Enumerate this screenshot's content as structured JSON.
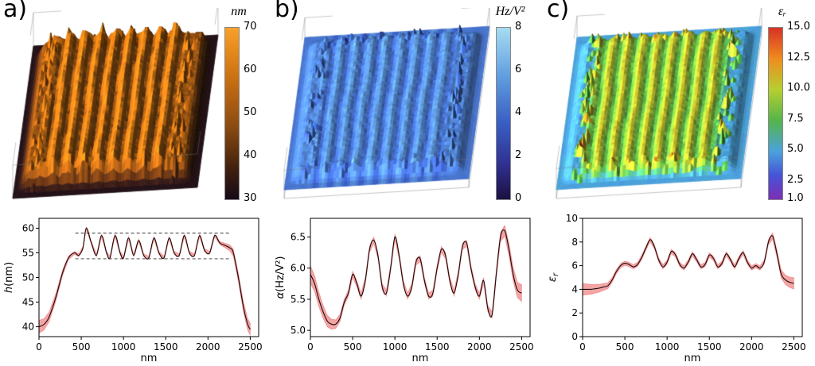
{
  "panels": [
    {
      "label": "a)",
      "colorbar": {
        "title": "nm",
        "min": 30,
        "max": 70,
        "tick_values": [
          70,
          60,
          50,
          40,
          30
        ],
        "tick_labels": [
          "70",
          "60",
          "50",
          "40",
          "30"
        ],
        "stops": [
          [
            0,
            "#150a18"
          ],
          [
            0.18,
            "#41200e"
          ],
          [
            0.42,
            "#8a4a10"
          ],
          [
            0.68,
            "#c46d12"
          ],
          [
            0.88,
            "#e88c1c"
          ],
          [
            1,
            "#f9a12b"
          ]
        ]
      },
      "surface": {
        "type": "3d-topography",
        "stripe_count": 9
      }
    },
    {
      "label": "b)",
      "colorbar": {
        "title": "Hz/V²",
        "min": 0,
        "max": 8,
        "tick_values": [
          8,
          6,
          4,
          2,
          0
        ],
        "tick_labels": [
          "8",
          "6",
          "4",
          "2",
          "0"
        ],
        "stops": [
          [
            0,
            "#1b1040"
          ],
          [
            0.2,
            "#30308f"
          ],
          [
            0.45,
            "#3a5fc4"
          ],
          [
            0.7,
            "#5e9ade"
          ],
          [
            1,
            "#a6dcf2"
          ]
        ]
      },
      "surface": {
        "type": "3d-dissipation-map",
        "stripe_count": 9
      }
    },
    {
      "label": "c)",
      "colorbar": {
        "title": "εᵣ",
        "min": 1.0,
        "max": 15.0,
        "tick_values": [
          15.0,
          12.5,
          10.0,
          7.5,
          5.0,
          2.5,
          1.0
        ],
        "tick_labels": [
          "15.0",
          "12.5",
          "10.0",
          "7.5",
          "5.0",
          "2.5",
          "1.0"
        ],
        "stops": [
          [
            0,
            "#7b2fb5"
          ],
          [
            0.14,
            "#4753d6"
          ],
          [
            0.28,
            "#4aa3dc"
          ],
          [
            0.46,
            "#55b44a"
          ],
          [
            0.64,
            "#b6cf30"
          ],
          [
            0.82,
            "#ee8c1e"
          ],
          [
            1,
            "#d83125"
          ]
        ]
      },
      "surface": {
        "type": "3d-permittivity-map",
        "stripe_count": 9
      }
    }
  ],
  "chart_data": [
    {
      "type": "line",
      "panel": "a",
      "xlabel": "nm",
      "ylabel_parts": [
        {
          "t": "h",
          "italic": true
        },
        {
          "t": "(nm)"
        }
      ],
      "xlim": [
        0,
        2600
      ],
      "ylim": [
        38,
        62
      ],
      "xtick_values": [
        0,
        500,
        1000,
        1500,
        2000,
        2500
      ],
      "xtick_labels": [
        "0",
        "500",
        "1000",
        "1500",
        "2000",
        "2500"
      ],
      "ytick_values": [
        40,
        45,
        50,
        55,
        60
      ],
      "ytick_labels": [
        "40",
        "45",
        "50",
        "55",
        "60"
      ],
      "line_color": "#1c0a0a",
      "band_color": "#e84b4b",
      "band_mid": 0.3,
      "band_edge": 1.3,
      "guides": [
        {
          "y": 59.0,
          "x1": 430,
          "x2": 2260
        },
        {
          "y": 53.8,
          "x1": 430,
          "x2": 2260
        }
      ],
      "x": [
        0,
        60,
        120,
        200,
        280,
        350,
        420,
        470,
        520,
        560,
        620,
        680,
        740,
        800,
        840,
        900,
        960,
        1000,
        1060,
        1120,
        1180,
        1240,
        1300,
        1360,
        1420,
        1480,
        1540,
        1600,
        1660,
        1720,
        1780,
        1840,
        1900,
        1960,
        2020,
        2080,
        2140,
        2200,
        2260,
        2300,
        2360,
        2420,
        2470,
        2500
      ],
      "y": [
        40,
        40.5,
        42,
        46,
        51,
        54,
        55,
        54.5,
        56,
        60,
        57,
        54.5,
        58.5,
        55,
        54,
        58.5,
        55,
        54,
        58,
        54.5,
        57.5,
        54.5,
        54,
        58,
        55,
        54,
        58,
        55,
        54.5,
        58.5,
        55,
        54.5,
        58.5,
        55.5,
        55,
        58.5,
        57,
        56.5,
        56,
        55,
        50,
        44,
        40.5,
        39.5
      ]
    },
    {
      "type": "line",
      "panel": "b",
      "xlabel": "nm",
      "ylabel_parts": [
        {
          "t": "α",
          "italic": true
        },
        {
          "t": "(Hz/V²)"
        }
      ],
      "xlim": [
        0,
        2600
      ],
      "ylim": [
        4.9,
        6.8
      ],
      "xtick_values": [
        0,
        500,
        1000,
        1500,
        2000,
        2500
      ],
      "xtick_labels": [
        "0",
        "500",
        "1000",
        "1500",
        "2000",
        "2500"
      ],
      "ytick_values": [
        5.0,
        5.5,
        6.0,
        6.5
      ],
      "ytick_labels": [
        "5.0",
        "5.5",
        "6.0",
        "6.5"
      ],
      "line_color": "#1c0a0a",
      "band_color": "#e84b4b",
      "band_mid": 0.05,
      "band_edge": 0.14,
      "guides": [],
      "x": [
        0,
        50,
        100,
        150,
        200,
        250,
        300,
        350,
        400,
        450,
        500,
        550,
        600,
        650,
        700,
        750,
        800,
        850,
        900,
        950,
        1000,
        1050,
        1100,
        1150,
        1200,
        1250,
        1300,
        1350,
        1400,
        1450,
        1500,
        1550,
        1600,
        1650,
        1700,
        1750,
        1800,
        1850,
        1900,
        1950,
        2000,
        2050,
        2100,
        2150,
        2200,
        2250,
        2300,
        2350,
        2400,
        2450,
        2500
      ],
      "y": [
        5.9,
        5.75,
        5.5,
        5.3,
        5.15,
        5.1,
        5.1,
        5.2,
        5.45,
        5.6,
        5.9,
        5.75,
        5.55,
        5.8,
        6.3,
        6.45,
        6.2,
        5.7,
        5.6,
        6.0,
        6.5,
        6.2,
        5.75,
        5.55,
        5.7,
        6.1,
        6.15,
        5.8,
        5.55,
        5.6,
        6.0,
        6.3,
        6.2,
        5.8,
        5.6,
        5.9,
        6.35,
        6.4,
        6.0,
        5.7,
        5.55,
        5.8,
        5.35,
        5.25,
        5.9,
        6.5,
        6.6,
        6.3,
        5.9,
        5.65,
        5.6
      ]
    },
    {
      "type": "line",
      "panel": "c",
      "xlabel": "nm",
      "ylabel_parts": [
        {
          "t": "ε",
          "italic": true
        },
        {
          "t": "r",
          "italic": true,
          "sub": true
        }
      ],
      "xlim": [
        0,
        2600
      ],
      "ylim": [
        0,
        10
      ],
      "xtick_values": [
        0,
        500,
        1000,
        1500,
        2000,
        2500
      ],
      "xtick_labels": [
        "0",
        "500",
        "1000",
        "1500",
        "2000",
        "2500"
      ],
      "ytick_values": [
        0,
        2,
        4,
        6,
        8,
        10
      ],
      "ytick_labels": [
        "0",
        "2",
        "4",
        "6",
        "8",
        "10"
      ],
      "line_color": "#1c0a0a",
      "band_color": "#e84b4b",
      "band_mid": 0.18,
      "band_edge": 0.5,
      "guides": [],
      "x": [
        0,
        50,
        100,
        150,
        200,
        250,
        300,
        350,
        400,
        450,
        500,
        550,
        600,
        650,
        700,
        750,
        800,
        850,
        900,
        950,
        1000,
        1050,
        1100,
        1150,
        1200,
        1250,
        1300,
        1350,
        1400,
        1450,
        1500,
        1550,
        1600,
        1650,
        1700,
        1750,
        1800,
        1850,
        1900,
        1950,
        2000,
        2050,
        2100,
        2150,
        2200,
        2250,
        2300,
        2350,
        2400,
        2450,
        2500
      ],
      "y": [
        4.0,
        4.0,
        4.0,
        4.05,
        4.1,
        4.2,
        4.3,
        4.8,
        5.5,
        6.0,
        6.2,
        6.1,
        5.9,
        6.1,
        6.7,
        7.5,
        8.2,
        7.6,
        6.5,
        5.9,
        6.3,
        7.2,
        6.9,
        6.1,
        5.8,
        6.3,
        7.0,
        6.5,
        5.9,
        6.1,
        6.9,
        6.6,
        5.9,
        6.2,
        7.0,
        6.5,
        5.9,
        6.6,
        7.1,
        6.3,
        5.8,
        6.0,
        5.8,
        6.3,
        8.0,
        8.5,
        7.0,
        5.3,
        4.8,
        4.6,
        4.5
      ]
    }
  ]
}
